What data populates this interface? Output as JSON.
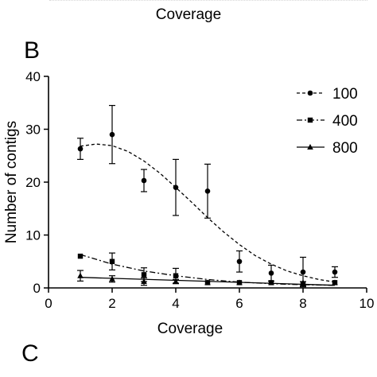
{
  "top_fragment": {
    "xlabel": "Coverage"
  },
  "panel_b": {
    "letter": "B"
  },
  "panel_c": {
    "letter": "C"
  },
  "chart_data": {
    "type": "scatter",
    "xlabel": "Coverage",
    "ylabel": "Number of contigs",
    "xlim": [
      0,
      10
    ],
    "ylim": [
      0,
      40
    ],
    "xticks": [
      0,
      2,
      4,
      6,
      8,
      10
    ],
    "yticks": [
      0,
      10,
      20,
      30,
      40
    ],
    "legend": "top-right",
    "grid": false,
    "series": [
      {
        "name": "100",
        "marker": "circle",
        "line": "dashed",
        "x": [
          1,
          2,
          3,
          4,
          5,
          6,
          7,
          8,
          9
        ],
        "y": [
          26.3,
          29,
          20.3,
          19,
          18.3,
          5,
          2.8,
          3,
          3
        ],
        "err": [
          2,
          5.5,
          2.1,
          5.3,
          5.1,
          2,
          1.5,
          2.8,
          1
        ],
        "fit": [
          [
            1,
            26.8
          ],
          [
            1.5,
            27.2
          ],
          [
            2,
            26.9
          ],
          [
            2.5,
            25.8
          ],
          [
            3,
            24
          ],
          [
            3.5,
            21.7
          ],
          [
            4,
            19
          ],
          [
            4.5,
            16.2
          ],
          [
            5,
            13.3
          ],
          [
            5.5,
            10.6
          ],
          [
            6,
            8.2
          ],
          [
            6.5,
            6.1
          ],
          [
            7,
            4.5
          ],
          [
            7.5,
            3.2
          ],
          [
            8,
            2.3
          ],
          [
            8.5,
            1.6
          ],
          [
            9,
            1.1
          ]
        ]
      },
      {
        "name": "400",
        "marker": "square",
        "line": "dash-dot",
        "x": [
          1,
          2,
          3,
          4,
          5,
          6,
          7,
          8,
          9
        ],
        "y": [
          6,
          5,
          2.5,
          2.3,
          1,
          1,
          1,
          0.8,
          1
        ],
        "err": [
          0,
          1.6,
          1.3,
          1.4,
          0,
          0,
          0,
          0.4,
          0
        ],
        "fit": [
          [
            1,
            6.3
          ],
          [
            2,
            4.5
          ],
          [
            3,
            3.2
          ],
          [
            4,
            2.3
          ],
          [
            5,
            1.6
          ],
          [
            6,
            1.1
          ],
          [
            7,
            0.8
          ],
          [
            8,
            0.6
          ],
          [
            9,
            0.5
          ]
        ]
      },
      {
        "name": "800",
        "marker": "triangle",
        "line": "solid",
        "x": [
          1,
          2,
          3,
          4,
          5,
          6,
          7,
          8,
          9
        ],
        "y": [
          2.3,
          1.7,
          1.2,
          1.2,
          1,
          1,
          1,
          1,
          1
        ],
        "err": [
          1,
          0.6,
          0.7,
          0.4,
          0,
          0,
          0,
          0,
          0
        ],
        "fit": [
          [
            1,
            2
          ],
          [
            9,
            0.5
          ]
        ]
      }
    ]
  }
}
